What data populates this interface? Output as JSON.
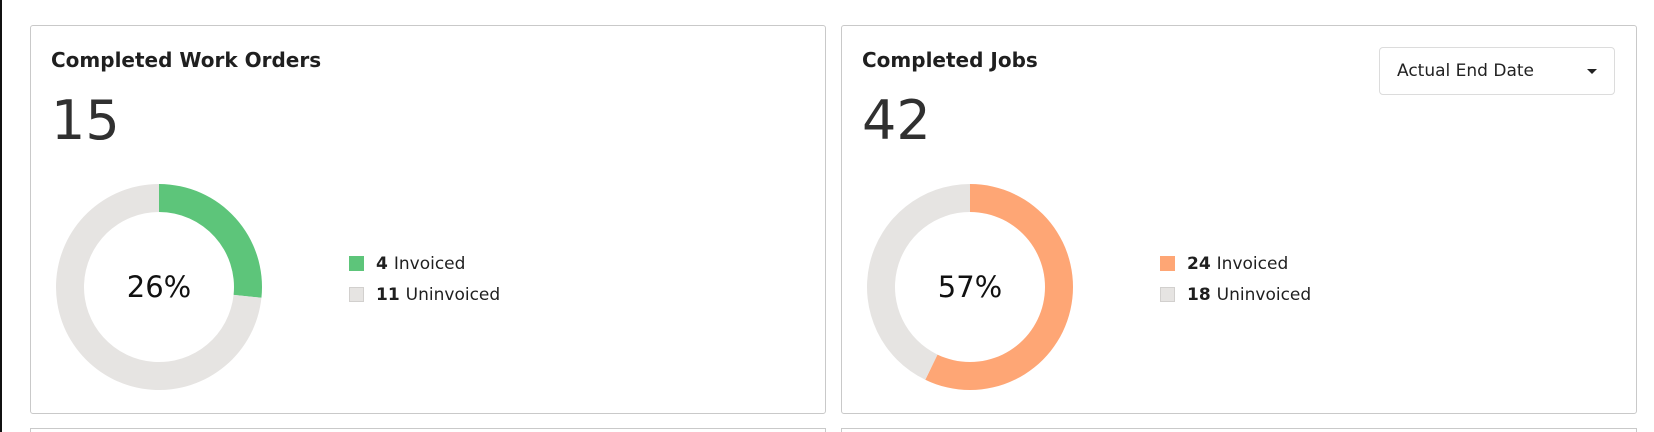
{
  "colors": {
    "invoiced_work_orders": "#5dc57a",
    "invoiced_jobs": "#fea675",
    "uninvoiced": "#e6e4e2",
    "card_border": "#c9c9c9"
  },
  "work_orders": {
    "title": "Completed Work Orders",
    "total": "15",
    "percent_label": "26%",
    "legend": [
      {
        "count": "4",
        "label": "Invoiced"
      },
      {
        "count": "11",
        "label": "Uninvoiced"
      }
    ]
  },
  "jobs": {
    "title": "Completed Jobs",
    "total": "42",
    "percent_label": "57%",
    "date_filter": {
      "selected": "Actual End Date",
      "icon": "chevron-down-icon"
    },
    "legend": [
      {
        "count": "24",
        "label": "Invoiced"
      },
      {
        "count": "18",
        "label": "Uninvoiced"
      }
    ]
  },
  "chart_data": [
    {
      "type": "pie",
      "categories": [
        "Invoiced",
        "Uninvoiced"
      ],
      "values": [
        4,
        11
      ],
      "center_label": "26%",
      "legend_placement": "right"
    },
    {
      "type": "pie",
      "categories": [
        "Invoiced",
        "Uninvoiced"
      ],
      "values": [
        24,
        18
      ],
      "center_label": "57%",
      "legend_placement": "right"
    }
  ]
}
